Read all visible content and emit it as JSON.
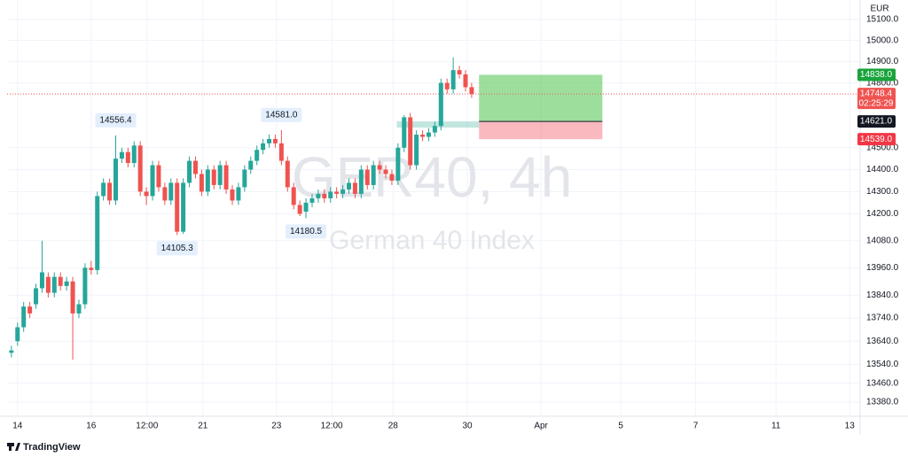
{
  "chart_data": {
    "type": "candlestick",
    "symbol": "GER40, 4h",
    "description": "German 40 Index",
    "currency": "EUR",
    "log": true,
    "grid": true,
    "up_color": "#26a69a",
    "down_color": "#ef5350",
    "open": [
      13590,
      13640,
      13700,
      13790,
      13800,
      13870,
      13920,
      13850,
      13920,
      13880,
      13900,
      13760,
      13800,
      13960,
      13950,
      14280,
      14340,
      14260,
      14450,
      14480,
      14430,
      14510,
      14300,
      14280,
      14420,
      14320,
      14260,
      14340,
      14120,
      14340,
      14440,
      14380,
      14300,
      14400,
      14330,
      14420,
      14310,
      14260,
      14320,
      14400,
      14440,
      14490,
      14520,
      14540,
      14520,
      14440,
      14320,
      14240,
      14210,
      14250,
      14270,
      14290,
      14270,
      14300,
      14290,
      14310,
      14340,
      14290,
      14400,
      14330,
      14420,
      14400,
      14380,
      14350,
      14500,
      14640,
      14420,
      14560,
      14550,
      14570,
      14600,
      14800,
      14770,
      14860,
      14840,
      14780
    ],
    "high": [
      13620,
      13720,
      13810,
      13810,
      13890,
      14080,
      13940,
      13940,
      13940,
      13920,
      13920,
      13820,
      13980,
      13990,
      14300,
      14360,
      14360,
      14556.4,
      14500,
      14500,
      14530,
      14530,
      14320,
      14440,
      14440,
      14340,
      14360,
      14360,
      14360,
      14460,
      14460,
      14400,
      14420,
      14420,
      14440,
      14440,
      14330,
      14340,
      14420,
      14460,
      14510,
      14540,
      14560,
      14560,
      14581,
      14460,
      14340,
      14260,
      14270,
      14290,
      14310,
      14310,
      14320,
      14320,
      14330,
      14360,
      14360,
      14420,
      14420,
      14440,
      14440,
      14420,
      14400,
      14520,
      14650,
      14660,
      14580,
      14580,
      14590,
      14620,
      14820,
      14820,
      14920,
      14880,
      14860,
      14800
    ],
    "low": [
      13570,
      13620,
      13680,
      13740,
      13780,
      13850,
      13830,
      13830,
      13860,
      13860,
      13560,
      13740,
      13780,
      13930,
      13930,
      14260,
      14240,
      14240,
      14430,
      14410,
      14410,
      14280,
      14240,
      14260,
      14300,
      14240,
      14240,
      14105.3,
      14110,
      14320,
      14360,
      14280,
      14280,
      14310,
      14310,
      14290,
      14240,
      14240,
      14300,
      14380,
      14420,
      14470,
      14500,
      14500,
      14420,
      14300,
      14220,
      14190,
      14180.5,
      14230,
      14250,
      14250,
      14250,
      14270,
      14270,
      14290,
      14270,
      14270,
      14310,
      14310,
      14380,
      14360,
      14330,
      14330,
      14480,
      14400,
      14400,
      14530,
      14530,
      14550,
      14580,
      14750,
      14750,
      14820,
      14760,
      14730
    ],
    "close": [
      13600,
      13700,
      13790,
      13760,
      13870,
      13940,
      13850,
      13920,
      13880,
      13900,
      13760,
      13800,
      13960,
      13950,
      14280,
      14340,
      14260,
      14450,
      14480,
      14430,
      14510,
      14300,
      14280,
      14420,
      14320,
      14260,
      14340,
      14120,
      14340,
      14440,
      14380,
      14300,
      14400,
      14330,
      14420,
      14310,
      14260,
      14320,
      14400,
      14440,
      14490,
      14520,
      14540,
      14520,
      14440,
      14320,
      14240,
      14200,
      14250,
      14270,
      14290,
      14270,
      14300,
      14290,
      14310,
      14340,
      14290,
      14400,
      14330,
      14420,
      14400,
      14380,
      14350,
      14500,
      14640,
      14420,
      14560,
      14550,
      14570,
      14600,
      14800,
      14770,
      14860,
      14840,
      14780,
      14748.4
    ],
    "annotations": [
      {
        "label": "14556.4",
        "value": 14556.4,
        "x": 17,
        "side": "above"
      },
      {
        "label": "14105.3",
        "value": 14105.3,
        "x": 27,
        "side": "below"
      },
      {
        "label": "14581.0",
        "value": 14581.0,
        "x": 44,
        "side": "above"
      },
      {
        "label": "14180.5",
        "value": 14180.5,
        "x": 48,
        "side": "below"
      }
    ],
    "last_price": {
      "value": 14748.4,
      "label": "14748.4",
      "countdown": "02:25:29"
    },
    "position": {
      "start": 76.2,
      "end": 96.3,
      "target": {
        "value": 14838.0,
        "label": "14838.0"
      },
      "entry": {
        "value": 14621.0,
        "label": "14621.0"
      },
      "stop": {
        "value": 14539.0,
        "label": "14539.0"
      }
    },
    "xlim": [
      -0.7,
      138.3
    ],
    "ylim": [
      13320,
      15193
    ],
    "xticks": [
      {
        "value": 1,
        "label": "14"
      },
      {
        "value": 13,
        "label": "16"
      },
      {
        "value": 22.1,
        "label": "12:00"
      },
      {
        "value": 31.2,
        "label": "21"
      },
      {
        "value": 43.2,
        "label": "23"
      },
      {
        "value": 52.2,
        "label": "12:00"
      },
      {
        "value": 62.2,
        "label": "28"
      },
      {
        "value": 74.3,
        "label": "30"
      },
      {
        "value": 86.3,
        "label": "Apr"
      },
      {
        "value": 99.3,
        "label": "5"
      },
      {
        "value": 111.5,
        "label": "7"
      },
      {
        "value": 124.6,
        "label": "11"
      },
      {
        "value": 136.6,
        "label": "13"
      }
    ],
    "yticks": [
      {
        "value": 13380,
        "label": "13380.0"
      },
      {
        "value": 13460,
        "label": "13460.0"
      },
      {
        "value": 13540,
        "label": "13540.0"
      },
      {
        "value": 13640,
        "label": "13640.0"
      },
      {
        "value": 13740,
        "label": "13740.0"
      },
      {
        "value": 13840,
        "label": "13840.0"
      },
      {
        "value": 13960,
        "label": "13960.0"
      },
      {
        "value": 14080,
        "label": "14080.0"
      },
      {
        "value": 14200,
        "label": "14200.0"
      },
      {
        "value": 14300,
        "label": "14300.0"
      },
      {
        "value": 14400,
        "label": "14400.0"
      },
      {
        "value": 14500,
        "label": "14500.0"
      },
      {
        "value": 14800,
        "label": "14800.0"
      },
      {
        "value": 14900,
        "label": "14900.0"
      },
      {
        "value": 15000,
        "label": "15000.0"
      },
      {
        "value": 15100,
        "label": "15100.0"
      }
    ]
  },
  "branding": "TradingView"
}
